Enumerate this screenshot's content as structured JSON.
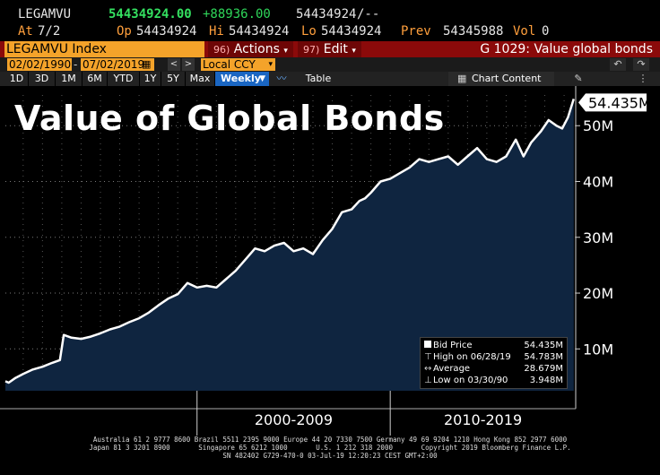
{
  "quote": {
    "ticker": "LEGAMVU",
    "last": "54434924.00",
    "change": "+88936.00",
    "bid_ask": "54434924",
    "ask": "/--",
    "at_label": "At",
    "at": "7/2",
    "open_label": "Op",
    "open": "54434924",
    "high_label": "Hi",
    "high": "54434924",
    "low_label": "Lo",
    "low": "54434924",
    "prev_label": "Prev",
    "prev": "54345988",
    "vol_label": "Vol",
    "vol": "0"
  },
  "toolbar": {
    "index_name": "LEGAMVU Index",
    "actions_num": "96)",
    "actions_label": "Actions",
    "edit_num": "97)",
    "edit_label": "Edit",
    "function_title": "G 1029: Value global bonds"
  },
  "range": {
    "start": "02/02/1990",
    "end": "07/02/2019",
    "currency": "Local CCY"
  },
  "periods": [
    "1D",
    "3D",
    "1M",
    "6M",
    "YTD",
    "1Y",
    "5Y",
    "Max"
  ],
  "frequency": "Weekly",
  "table_label": "Table",
  "chart_content_label": "Chart Content",
  "icons": {
    "back": "undo-arrow-icon",
    "forward": "redo-arrow-icon",
    "chart_type": "line-chart-icon",
    "edit": "pencil-icon"
  },
  "chart_title": "Value of Global Bonds",
  "legend": {
    "items": [
      {
        "mark": "swatch",
        "label": "Bid Price",
        "value": "54.435M"
      },
      {
        "mark": "⊤",
        "label": "High on 06/28/19",
        "value": "54.783M"
      },
      {
        "mark": "↔",
        "label": "Average",
        "value": "28.679M"
      },
      {
        "mark": "⊥",
        "label": "Low on 03/30/90",
        "value": "3.948M"
      }
    ]
  },
  "last_value_label": "54.435M",
  "chart_data": {
    "type": "area",
    "title": "Value of Global Bonds",
    "ylim": [
      2.5,
      55.5
    ],
    "xlim": [
      1990.08,
      2019.6
    ],
    "y_ticks": [
      10,
      20,
      30,
      40,
      50
    ],
    "y_tick_labels": [
      "10M",
      "20M",
      "30M",
      "40M",
      "50M"
    ],
    "x_groups": [
      "2000-2009",
      "2010-2019"
    ],
    "x_group_boundaries": [
      2000,
      2010
    ],
    "color": "#ffffff",
    "fill": "#0f2540",
    "series": [
      {
        "x": [
          1990.08,
          1990.25,
          1990.6,
          1991.0,
          1991.5,
          1992.0,
          1992.5,
          1992.9,
          1993.1,
          1993.5,
          1994.0,
          1994.5,
          1995.0,
          1995.5,
          1996.0,
          1996.5,
          1997.0,
          1997.5,
          1998.0,
          1998.5,
          1999.0,
          1999.5,
          2000.0,
          2000.5,
          2001.0,
          2001.5,
          2002.0,
          2002.5,
          2003.0,
          2003.5,
          2004.0,
          2004.5,
          2005.0,
          2005.5,
          2006.0,
          2006.5,
          2007.0,
          2007.5,
          2008.0,
          2008.4,
          2008.7,
          2009.0,
          2009.5,
          2010.0,
          2010.5,
          2011.0,
          2011.5,
          2012.0,
          2012.5,
          2013.0,
          2013.5,
          2014.0,
          2014.5,
          2015.0,
          2015.5,
          2016.0,
          2016.5,
          2016.9,
          2017.3,
          2017.8,
          2018.2,
          2018.6,
          2018.9,
          2019.2,
          2019.5
        ],
        "y": [
          4.2,
          3.95,
          4.8,
          5.5,
          6.3,
          6.8,
          7.5,
          8.0,
          12.5,
          12.0,
          11.8,
          12.2,
          12.8,
          13.5,
          14.0,
          14.8,
          15.5,
          16.5,
          17.8,
          19.0,
          19.8,
          21.8,
          21.0,
          21.3,
          21.0,
          22.5,
          24.0,
          26.0,
          28.0,
          27.5,
          28.5,
          29.0,
          27.5,
          28.0,
          27.0,
          29.5,
          31.5,
          34.5,
          35.0,
          36.5,
          37.0,
          38.0,
          40.0,
          40.5,
          41.5,
          42.5,
          44.0,
          43.5,
          44.0,
          44.5,
          43.0,
          44.5,
          46.0,
          44.0,
          43.5,
          44.5,
          47.5,
          44.5,
          47.0,
          49.0,
          51.0,
          50.0,
          49.5,
          51.5,
          54.8
        ]
      }
    ]
  },
  "footer": {
    "line1": "Australia 61 2 9777 8600 Brazil 5511 2395 9000 Europe 44 20 7330 7500 Germany 49 69 9204 1210 Hong Kong 852 2977 6000",
    "line2": "Japan 81 3 3201 8900       Singapore 65 6212 1000       U.S. 1 212 318 2000       Copyright 2019 Bloomberg Finance L.P.",
    "line3": "SN 482402 G729-470-0 03-Jul-19 12:20:23 CEST GMT+2:00"
  }
}
